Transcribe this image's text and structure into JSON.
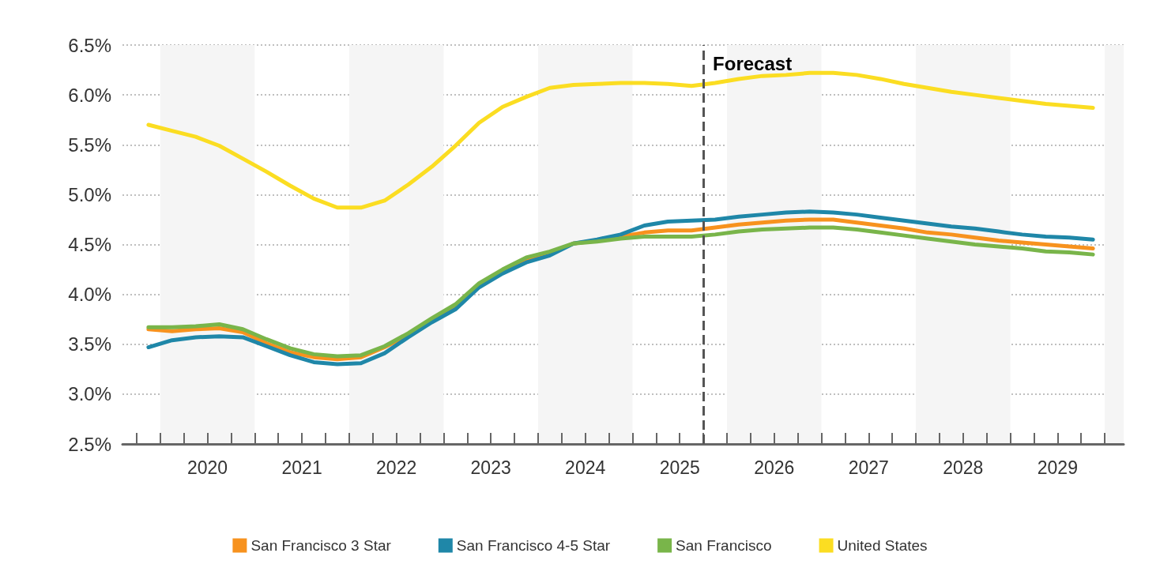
{
  "chart_data": {
    "type": "line",
    "x": [
      2019.875,
      2020.125,
      2020.375,
      2020.625,
      2020.875,
      2021.125,
      2021.375,
      2021.625,
      2021.875,
      2022.125,
      2022.375,
      2022.625,
      2022.875,
      2023.125,
      2023.375,
      2023.625,
      2023.875,
      2024.125,
      2024.375,
      2024.625,
      2024.875,
      2025.125,
      2025.375,
      2025.625,
      2025.875,
      2026.125,
      2026.375,
      2026.625,
      2026.875,
      2027.125,
      2027.375,
      2027.625,
      2027.875,
      2028.125,
      2028.375,
      2028.625,
      2028.875,
      2029.125,
      2029.375,
      2029.625,
      2029.875
    ],
    "series": [
      {
        "name": "San Francisco 3 Star",
        "color": "#f7921e",
        "values": [
          3.65,
          3.63,
          3.65,
          3.66,
          3.62,
          3.51,
          3.42,
          3.37,
          3.35,
          3.37,
          3.47,
          3.59,
          3.75,
          3.88,
          4.09,
          4.23,
          4.35,
          4.41,
          4.51,
          4.54,
          4.58,
          4.62,
          4.64,
          4.64,
          4.67,
          4.7,
          4.72,
          4.74,
          4.75,
          4.75,
          4.72,
          4.69,
          4.66,
          4.62,
          4.6,
          4.57,
          4.54,
          4.52,
          4.5,
          4.48,
          4.46
        ]
      },
      {
        "name": "San Francisco 4-5 Star",
        "color": "#1f87a8",
        "values": [
          3.47,
          3.54,
          3.57,
          3.58,
          3.57,
          3.48,
          3.39,
          3.32,
          3.3,
          3.31,
          3.41,
          3.57,
          3.72,
          3.85,
          4.07,
          4.21,
          4.32,
          4.39,
          4.51,
          4.55,
          4.6,
          4.69,
          4.73,
          4.74,
          4.75,
          4.78,
          4.8,
          4.82,
          4.83,
          4.82,
          4.8,
          4.77,
          4.74,
          4.71,
          4.68,
          4.66,
          4.63,
          4.6,
          4.58,
          4.57,
          4.55
        ]
      },
      {
        "name": "San Francisco",
        "color": "#79b54a",
        "values": [
          3.67,
          3.67,
          3.68,
          3.7,
          3.65,
          3.55,
          3.46,
          3.4,
          3.38,
          3.39,
          3.48,
          3.61,
          3.76,
          3.9,
          4.11,
          4.25,
          4.37,
          4.43,
          4.51,
          4.53,
          4.56,
          4.58,
          4.58,
          4.58,
          4.6,
          4.63,
          4.65,
          4.66,
          4.67,
          4.67,
          4.65,
          4.62,
          4.59,
          4.56,
          4.53,
          4.5,
          4.48,
          4.46,
          4.43,
          4.42,
          4.4
        ]
      },
      {
        "name": "United States",
        "color": "#fbdd22",
        "values": [
          5.7,
          5.64,
          5.58,
          5.49,
          5.36,
          5.23,
          5.09,
          4.96,
          4.87,
          4.87,
          4.94,
          5.1,
          5.28,
          5.49,
          5.72,
          5.88,
          5.98,
          6.07,
          6.1,
          6.11,
          6.12,
          6.12,
          6.11,
          6.09,
          6.12,
          6.16,
          6.19,
          6.2,
          6.22,
          6.22,
          6.2,
          6.16,
          6.11,
          6.07,
          6.03,
          6.0,
          5.97,
          5.94,
          5.91,
          5.89,
          5.87
        ]
      }
    ],
    "xlim": [
      2019.6,
      2030.2
    ],
    "xticks": [
      {
        "value": 2019.75,
        "label": null
      },
      {
        "value": 2020,
        "label": null
      },
      {
        "value": 2020.25,
        "label": null
      },
      {
        "value": 2020.5,
        "label": "2020"
      },
      {
        "value": 2020.75,
        "label": null
      },
      {
        "value": 2021,
        "label": null
      },
      {
        "value": 2021.25,
        "label": null
      },
      {
        "value": 2021.5,
        "label": "2021"
      },
      {
        "value": 2021.75,
        "label": null
      },
      {
        "value": 2022,
        "label": null
      },
      {
        "value": 2022.25,
        "label": null
      },
      {
        "value": 2022.5,
        "label": "2022"
      },
      {
        "value": 2022.75,
        "label": null
      },
      {
        "value": 2023,
        "label": null
      },
      {
        "value": 2023.25,
        "label": null
      },
      {
        "value": 2023.5,
        "label": "2023"
      },
      {
        "value": 2023.75,
        "label": null
      },
      {
        "value": 2024,
        "label": null
      },
      {
        "value": 2024.25,
        "label": null
      },
      {
        "value": 2024.5,
        "label": "2024"
      },
      {
        "value": 2024.75,
        "label": null
      },
      {
        "value": 2025,
        "label": null
      },
      {
        "value": 2025.25,
        "label": null
      },
      {
        "value": 2025.5,
        "label": "2025"
      },
      {
        "value": 2025.75,
        "label": null
      },
      {
        "value": 2026,
        "label": null
      },
      {
        "value": 2026.25,
        "label": null
      },
      {
        "value": 2026.5,
        "label": "2026"
      },
      {
        "value": 2026.75,
        "label": null
      },
      {
        "value": 2027,
        "label": null
      },
      {
        "value": 2027.25,
        "label": null
      },
      {
        "value": 2027.5,
        "label": "2027"
      },
      {
        "value": 2027.75,
        "label": null
      },
      {
        "value": 2028,
        "label": null
      },
      {
        "value": 2028.25,
        "label": null
      },
      {
        "value": 2028.5,
        "label": "2028"
      },
      {
        "value": 2028.75,
        "label": null
      },
      {
        "value": 2029,
        "label": null
      },
      {
        "value": 2029.25,
        "label": null
      },
      {
        "value": 2029.5,
        "label": "2029"
      },
      {
        "value": 2029.75,
        "label": null
      },
      {
        "value": 2030,
        "label": null
      }
    ],
    "ylim": [
      2.5,
      6.5
    ],
    "yticks": [
      {
        "value": 2.5,
        "label": "2.5%"
      },
      {
        "value": 3,
        "label": "3.0%"
      },
      {
        "value": 3.5,
        "label": "3.5%"
      },
      {
        "value": 4,
        "label": "4.0%"
      },
      {
        "value": 4.5,
        "label": "4.5%"
      },
      {
        "value": 5,
        "label": "5.0%"
      },
      {
        "value": 5.5,
        "label": "5.5%"
      },
      {
        "value": 6,
        "label": "6.0%"
      },
      {
        "value": 6.5,
        "label": "6.5%"
      }
    ],
    "ref_lines": [
      {
        "axis": "x",
        "value": 2025.75,
        "label": "Forecast",
        "color": "#555555",
        "line_style": "dashed"
      }
    ],
    "bands": [
      {
        "axis": "x",
        "from": 2020,
        "to": 2021,
        "color": "#f5f5f5"
      },
      {
        "axis": "x",
        "from": 2022,
        "to": 2023,
        "color": "#f5f5f5"
      },
      {
        "axis": "x",
        "from": 2024,
        "to": 2025,
        "color": "#f5f5f5"
      },
      {
        "axis": "x",
        "from": 2026,
        "to": 2027,
        "color": "#f5f5f5"
      },
      {
        "axis": "x",
        "from": 2028,
        "to": 2029,
        "color": "#f5f5f5"
      },
      {
        "axis": "x",
        "from": 2030,
        "to": 2030.2,
        "color": "#f5f5f5"
      }
    ],
    "grid": "y",
    "legend": "bottom",
    "marker": "none",
    "line_style": "solid"
  }
}
